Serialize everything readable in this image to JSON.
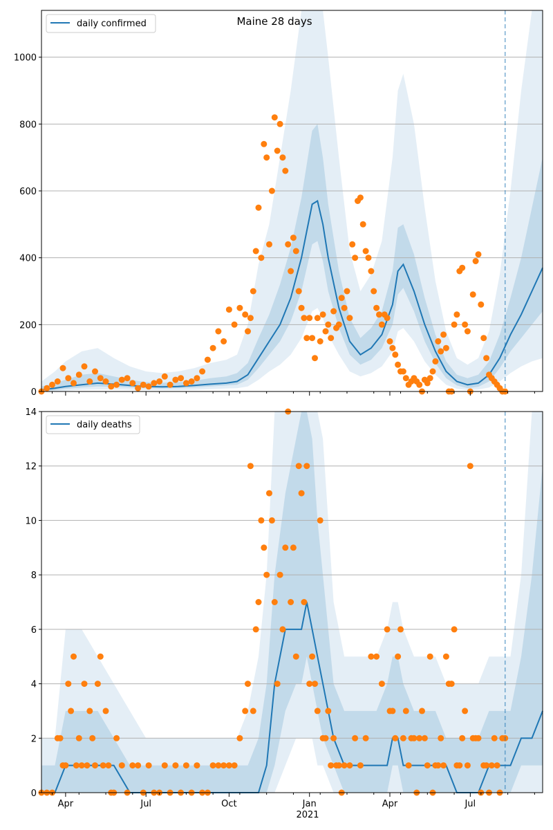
{
  "title": "Maine 28 days",
  "colors": {
    "line": "#1f77b4",
    "points": "#ff7f0e",
    "band": "#1f77b4",
    "grid": "#b0b0b0",
    "vline": "#1f77b4"
  },
  "x_axis": {
    "ticks": [
      {
        "label": "Apr",
        "t": 12
      },
      {
        "label": "Jul",
        "t": 42
      },
      {
        "label": "Oct",
        "t": 73
      },
      {
        "label": "Jan",
        "t": 103
      },
      {
        "label": "Apr",
        "t": 133
      },
      {
        "label": "Jul",
        "t": 163
      }
    ],
    "year_label": "2021",
    "range": [
      3,
      190
    ]
  },
  "forecast_start": 176,
  "chart_data": [
    {
      "type": "line",
      "legend": "daily confirmed",
      "ylim": [
        0,
        1140
      ],
      "yticks": [
        0,
        200,
        400,
        600,
        800,
        1000
      ],
      "grid": true,
      "legend_position": "top-left",
      "x": [
        3,
        8,
        12,
        18,
        24,
        30,
        36,
        42,
        48,
        54,
        60,
        66,
        72,
        76,
        80,
        84,
        88,
        92,
        96,
        100,
        102,
        104,
        106,
        108,
        110,
        114,
        118,
        122,
        126,
        130,
        134,
        136,
        138,
        142,
        146,
        150,
        154,
        158,
        162,
        166,
        170,
        174,
        178,
        182,
        186,
        190
      ],
      "series": [
        {
          "name": "daily confirmed",
          "values": [
            5,
            10,
            15,
            20,
            25,
            22,
            18,
            15,
            14,
            15,
            18,
            22,
            25,
            30,
            50,
            100,
            150,
            200,
            280,
            400,
            480,
            560,
            570,
            500,
            400,
            250,
            150,
            110,
            130,
            170,
            260,
            360,
            380,
            300,
            200,
            120,
            60,
            30,
            20,
            25,
            50,
            100,
            170,
            230,
            300,
            370
          ]
        }
      ],
      "band_50": {
        "low": [
          0,
          4,
          8,
          12,
          15,
          14,
          12,
          10,
          9,
          10,
          12,
          15,
          18,
          20,
          35,
          70,
          110,
          150,
          210,
          300,
          370,
          440,
          450,
          390,
          300,
          190,
          110,
          80,
          95,
          130,
          200,
          290,
          310,
          240,
          150,
          85,
          40,
          18,
          10,
          14,
          30,
          70,
          120,
          160,
          200,
          240
        ],
        "high": [
          15,
          25,
          35,
          50,
          55,
          45,
          35,
          28,
          26,
          28,
          32,
          40,
          45,
          55,
          85,
          160,
          230,
          320,
          430,
          580,
          680,
          780,
          800,
          700,
          560,
          360,
          220,
          160,
          190,
          240,
          360,
          490,
          500,
          410,
          280,
          170,
          90,
          50,
          40,
          50,
          90,
          170,
          280,
          400,
          550,
          700
        ]
      },
      "band_90": {
        "low": [
          0,
          0,
          2,
          5,
          6,
          6,
          5,
          4,
          4,
          4,
          5,
          7,
          9,
          10,
          15,
          35,
          60,
          80,
          110,
          160,
          200,
          240,
          250,
          220,
          170,
          110,
          60,
          45,
          55,
          75,
          120,
          180,
          190,
          150,
          90,
          50,
          20,
          8,
          4,
          6,
          12,
          30,
          55,
          75,
          90,
          100
        ],
        "high": [
          30,
          60,
          90,
          120,
          130,
          100,
          75,
          60,
          55,
          60,
          70,
          85,
          95,
          110,
          200,
          380,
          500,
          700,
          900,
          1140,
          1140,
          1140,
          1140,
          1140,
          1000,
          700,
          420,
          300,
          350,
          450,
          700,
          900,
          950,
          800,
          550,
          330,
          180,
          100,
          80,
          100,
          180,
          350,
          600,
          900,
          1140,
          1140
        ]
      },
      "points": {
        "x": [
          3,
          5,
          7,
          9,
          11,
          13,
          15,
          17,
          19,
          21,
          23,
          25,
          27,
          29,
          31,
          33,
          35,
          37,
          39,
          41,
          43,
          45,
          47,
          49,
          51,
          53,
          55,
          57,
          59,
          61,
          63,
          65,
          67,
          69,
          71,
          73,
          75,
          77,
          79,
          80,
          81,
          82,
          83,
          84,
          85,
          86,
          87,
          88,
          89,
          90,
          91,
          92,
          93,
          94,
          95,
          96,
          97,
          98,
          99,
          100,
          101,
          102,
          103,
          104,
          105,
          106,
          107,
          108,
          109,
          110,
          111,
          112,
          113,
          114,
          115,
          116,
          117,
          118,
          119,
          120,
          121,
          122,
          123,
          124,
          125,
          126,
          127,
          128,
          129,
          130,
          131,
          132,
          133,
          134,
          135,
          136,
          137,
          138,
          139,
          140,
          141,
          142,
          143,
          144,
          145,
          146,
          147,
          148,
          149,
          150,
          151,
          152,
          153,
          154,
          155,
          156,
          157,
          158,
          159,
          160,
          161,
          162,
          163,
          164,
          165,
          166,
          167,
          168,
          169,
          170,
          171,
          172,
          173,
          174,
          175,
          176
        ],
        "y": [
          0,
          10,
          20,
          30,
          70,
          40,
          25,
          50,
          75,
          30,
          60,
          40,
          30,
          15,
          20,
          35,
          40,
          25,
          10,
          20,
          15,
          25,
          30,
          45,
          20,
          35,
          40,
          25,
          30,
          40,
          60,
          95,
          130,
          180,
          150,
          245,
          200,
          250,
          230,
          180,
          220,
          300,
          420,
          550,
          400,
          740,
          700,
          440,
          600,
          820,
          720,
          800,
          700,
          660,
          440,
          360,
          460,
          420,
          300,
          250,
          220,
          160,
          220,
          160,
          100,
          220,
          150,
          230,
          180,
          200,
          160,
          240,
          190,
          200,
          280,
          250,
          300,
          220,
          440,
          400,
          570,
          580,
          500,
          420,
          400,
          360,
          300,
          250,
          230,
          200,
          230,
          220,
          150,
          130,
          110,
          80,
          60,
          60,
          40,
          20,
          30,
          40,
          30,
          20,
          0,
          35,
          25,
          40,
          60,
          90,
          150,
          120,
          170,
          130,
          0,
          0,
          200,
          230,
          360,
          370,
          200,
          180,
          0,
          290,
          390,
          410,
          260,
          160,
          100,
          50,
          40,
          30,
          20,
          10,
          0,
          0
        ],
        "style": "scatter"
      }
    },
    {
      "type": "line",
      "legend": "daily deaths",
      "ylim": [
        0,
        14
      ],
      "yticks": [
        0,
        2,
        4,
        6,
        8,
        10,
        12,
        14
      ],
      "grid": true,
      "legend_position": "top-left",
      "x": [
        3,
        8,
        12,
        18,
        24,
        30,
        36,
        42,
        48,
        54,
        60,
        66,
        72,
        76,
        80,
        84,
        87,
        90,
        94,
        98,
        100,
        102,
        104,
        106,
        108,
        112,
        116,
        120,
        124,
        128,
        132,
        134,
        136,
        138,
        142,
        146,
        150,
        154,
        158,
        162,
        166,
        170,
        174,
        178,
        182,
        186,
        190
      ],
      "series": [
        {
          "name": "daily deaths",
          "values": [
            0,
            0,
            1,
            1,
            1,
            1,
            0,
            0,
            0,
            0,
            0,
            0,
            0,
            0,
            0,
            0,
            1,
            4,
            6,
            6,
            6,
            7,
            6,
            5,
            4,
            2,
            1,
            1,
            1,
            1,
            1,
            2,
            2,
            1,
            1,
            1,
            1,
            1,
            0,
            0,
            0,
            1,
            1,
            1,
            2,
            2,
            3
          ]
        }
      ],
      "band_50": {
        "low": [
          0,
          0,
          0,
          0,
          0,
          0,
          0,
          0,
          0,
          0,
          0,
          0,
          0,
          0,
          0,
          0,
          0,
          1,
          3,
          4,
          4,
          5,
          4,
          3,
          2,
          1,
          0,
          0,
          0,
          0,
          0,
          1,
          1,
          0,
          0,
          0,
          0,
          0,
          0,
          0,
          0,
          0,
          0,
          0,
          1,
          1,
          1
        ],
        "high": [
          1,
          1,
          3,
          3,
          3,
          2,
          1,
          1,
          1,
          1,
          1,
          1,
          1,
          1,
          1,
          2,
          4,
          8,
          11,
          13,
          14,
          14,
          13,
          10,
          8,
          4,
          3,
          3,
          3,
          3,
          4,
          5,
          5,
          4,
          3,
          3,
          3,
          2,
          2,
          2,
          2,
          3,
          3,
          3,
          5,
          8,
          12
        ]
      },
      "band_90": {
        "low": [
          0,
          0,
          0,
          0,
          0,
          0,
          0,
          0,
          0,
          0,
          0,
          0,
          0,
          0,
          0,
          0,
          0,
          0,
          1,
          2,
          2,
          2,
          2,
          1,
          1,
          0,
          0,
          0,
          0,
          0,
          0,
          0,
          0,
          0,
          0,
          0,
          0,
          0,
          0,
          0,
          0,
          0,
          0,
          0,
          0,
          0,
          0
        ],
        "high": [
          2,
          2,
          6,
          6,
          5,
          4,
          3,
          2,
          2,
          2,
          2,
          2,
          2,
          2,
          3,
          5,
          8,
          14,
          14,
          14,
          14,
          14,
          14,
          14,
          13,
          7,
          5,
          5,
          5,
          5,
          6,
          7,
          7,
          6,
          5,
          5,
          5,
          4,
          4,
          4,
          4,
          5,
          5,
          5,
          8,
          14,
          14
        ]
      },
      "points": {
        "x": [
          3,
          5,
          7,
          9,
          10,
          11,
          12,
          13,
          14,
          15,
          16,
          17,
          18,
          19,
          20,
          21,
          22,
          23,
          24,
          25,
          26,
          27,
          28,
          29,
          30,
          31,
          33,
          35,
          37,
          39,
          41,
          43,
          45,
          47,
          49,
          51,
          53,
          55,
          57,
          59,
          61,
          63,
          65,
          67,
          69,
          71,
          73,
          75,
          77,
          79,
          80,
          81,
          82,
          83,
          84,
          85,
          86,
          87,
          88,
          89,
          90,
          91,
          92,
          93,
          94,
          95,
          96,
          97,
          98,
          99,
          100,
          101,
          102,
          103,
          104,
          105,
          106,
          107,
          108,
          109,
          110,
          111,
          112,
          113,
          114,
          115,
          116,
          118,
          120,
          122,
          124,
          126,
          128,
          130,
          132,
          133,
          134,
          135,
          136,
          137,
          138,
          139,
          140,
          141,
          142,
          143,
          144,
          145,
          146,
          147,
          148,
          149,
          150,
          151,
          152,
          153,
          154,
          155,
          156,
          157,
          158,
          159,
          160,
          161,
          162,
          163,
          164,
          165,
          166,
          167,
          168,
          169,
          170,
          171,
          172,
          173,
          174,
          175,
          176
        ],
        "y": [
          0,
          0,
          0,
          2,
          2,
          1,
          1,
          4,
          3,
          5,
          1,
          2,
          1,
          4,
          1,
          3,
          2,
          1,
          4,
          5,
          1,
          3,
          1,
          0,
          0,
          2,
          1,
          0,
          1,
          1,
          0,
          1,
          0,
          0,
          1,
          0,
          1,
          0,
          1,
          0,
          1,
          0,
          0,
          1,
          1,
          1,
          1,
          1,
          2,
          3,
          4,
          12,
          3,
          6,
          7,
          10,
          9,
          8,
          11,
          10,
          7,
          4,
          8,
          6,
          9,
          14,
          7,
          9,
          5,
          12,
          11,
          7,
          12,
          4,
          5,
          4,
          3,
          10,
          2,
          2,
          3,
          1,
          2,
          1,
          1,
          0,
          1,
          1,
          2,
          1,
          2,
          5,
          5,
          4,
          6,
          3,
          3,
          2,
          5,
          6,
          2,
          3,
          1,
          2,
          2,
          0,
          2,
          3,
          2,
          1,
          5,
          0,
          1,
          1,
          2,
          1,
          5,
          4,
          4,
          6,
          1,
          1,
          2,
          3,
          1,
          12,
          2,
          2,
          2,
          0,
          1,
          1,
          0,
          1,
          2,
          1,
          0,
          2,
          2
        ]
      }
    }
  ]
}
